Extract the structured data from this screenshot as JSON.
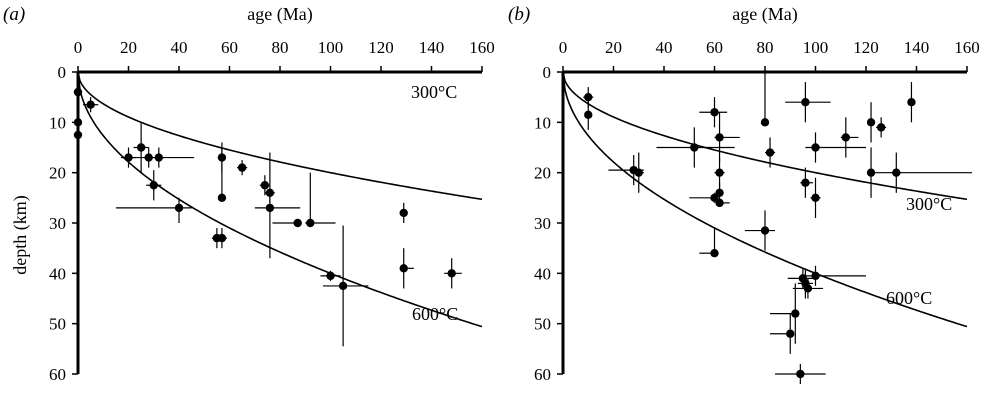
{
  "chart_data": [
    {
      "type": "scatter",
      "panel_label": "(a)",
      "xlabel": "age (Ma)",
      "ylabel": "depth (km)",
      "xlim": [
        0,
        160
      ],
      "ylim": [
        0,
        60
      ],
      "x_ticks": [
        0,
        20,
        40,
        60,
        80,
        100,
        120,
        140,
        160
      ],
      "y_ticks": [
        0,
        10,
        20,
        30,
        40,
        50,
        60
      ],
      "x_axis_position": "top",
      "y_inverted": true,
      "grid": false,
      "curves": [
        {
          "label": "300°C",
          "k": 2.0
        },
        {
          "label": "600°C",
          "k": 4.0
        }
      ],
      "points": [
        {
          "x": 0,
          "y": 4,
          "xerr": [
            0,
            0
          ],
          "yerr": [
            0,
            0
          ]
        },
        {
          "x": 0,
          "y": 10,
          "xerr": [
            0,
            0
          ],
          "yerr": [
            0,
            0
          ]
        },
        {
          "x": 0,
          "y": 12.5,
          "xerr": [
            0,
            0
          ],
          "yerr": [
            0,
            0
          ]
        },
        {
          "x": 5,
          "y": 6.5,
          "xerr": [
            3,
            3
          ],
          "yerr": [
            1.5,
            1.5
          ]
        },
        {
          "x": 20,
          "y": 17,
          "xerr": [
            3,
            3
          ],
          "yerr": [
            2,
            2
          ]
        },
        {
          "x": 25,
          "y": 15,
          "xerr": [
            3,
            3
          ],
          "yerr": [
            5,
            5
          ]
        },
        {
          "x": 28,
          "y": 17,
          "xerr": [
            7,
            18
          ],
          "yerr": [
            2,
            2
          ]
        },
        {
          "x": 30,
          "y": 22.5,
          "xerr": [
            3,
            3
          ],
          "yerr": [
            3,
            3
          ]
        },
        {
          "x": 32,
          "y": 17,
          "xerr": [
            2,
            2
          ],
          "yerr": [
            2,
            2
          ]
        },
        {
          "x": 40,
          "y": 27,
          "xerr": [
            25,
            5
          ],
          "yerr": [
            2,
            3
          ]
        },
        {
          "x": 55,
          "y": 33,
          "xerr": [
            2,
            2
          ],
          "yerr": [
            2,
            2
          ]
        },
        {
          "x": 57,
          "y": 17,
          "xerr": [
            0,
            0
          ],
          "yerr": [
            3,
            3
          ]
        },
        {
          "x": 57,
          "y": 25,
          "xerr": [
            0,
            0
          ],
          "yerr": [
            10,
            0
          ]
        },
        {
          "x": 57,
          "y": 33,
          "xerr": [
            2,
            2
          ],
          "yerr": [
            2,
            2
          ]
        },
        {
          "x": 65,
          "y": 19,
          "xerr": [
            2,
            2
          ],
          "yerr": [
            1.5,
            1.5
          ]
        },
        {
          "x": 74,
          "y": 22.5,
          "xerr": [
            2,
            2
          ],
          "yerr": [
            2,
            2
          ]
        },
        {
          "x": 76,
          "y": 24,
          "xerr": [
            2,
            2
          ],
          "yerr": [
            8,
            2
          ]
        },
        {
          "x": 76,
          "y": 27,
          "xerr": [
            6,
            12
          ],
          "yerr": [
            3,
            10
          ]
        },
        {
          "x": 87,
          "y": 30,
          "xerr": [
            10,
            0
          ],
          "yerr": [
            0,
            0
          ]
        },
        {
          "x": 92,
          "y": 30,
          "xerr": [
            2,
            10
          ],
          "yerr": [
            10,
            0
          ]
        },
        {
          "x": 100,
          "y": 40.5,
          "xerr": [
            4,
            4
          ],
          "yerr": [
            1,
            1
          ]
        },
        {
          "x": 105,
          "y": 42.5,
          "xerr": [
            8,
            10
          ],
          "yerr": [
            12,
            12
          ]
        },
        {
          "x": 129,
          "y": 28,
          "xerr": [
            1,
            1
          ],
          "yerr": [
            2,
            2
          ]
        },
        {
          "x": 129,
          "y": 39,
          "xerr": [
            0,
            4
          ],
          "yerr": [
            4,
            4
          ]
        },
        {
          "x": 148,
          "y": 40,
          "xerr": [
            3,
            4
          ],
          "yerr": [
            3,
            3
          ]
        }
      ]
    },
    {
      "type": "scatter",
      "panel_label": "(b)",
      "xlabel": "age (Ma)",
      "ylabel": "",
      "xlim": [
        0,
        160
      ],
      "ylim": [
        0,
        60
      ],
      "x_ticks": [
        0,
        20,
        40,
        60,
        80,
        100,
        120,
        140,
        160
      ],
      "y_ticks": [
        0,
        10,
        20,
        30,
        40,
        50,
        60
      ],
      "x_axis_position": "top",
      "y_inverted": true,
      "grid": false,
      "curves": [
        {
          "label": "300°C",
          "k": 2.0
        },
        {
          "label": "600°C",
          "k": 4.0
        }
      ],
      "points": [
        {
          "x": 10,
          "y": 5,
          "xerr": [
            2,
            2
          ],
          "yerr": [
            2,
            2
          ]
        },
        {
          "x": 10,
          "y": 8.5,
          "xerr": [
            0,
            0
          ],
          "yerr": [
            3,
            3
          ]
        },
        {
          "x": 28,
          "y": 19.5,
          "xerr": [
            10,
            4
          ],
          "yerr": [
            3,
            3
          ]
        },
        {
          "x": 30,
          "y": 20,
          "xerr": [
            2,
            2
          ],
          "yerr": [
            4,
            4
          ]
        },
        {
          "x": 52,
          "y": 15,
          "xerr": [
            15,
            16
          ],
          "yerr": [
            4,
            4
          ]
        },
        {
          "x": 60,
          "y": 8,
          "xerr": [
            6,
            5
          ],
          "yerr": [
            3,
            3
          ]
        },
        {
          "x": 60,
          "y": 25,
          "xerr": [
            10,
            0
          ],
          "yerr": [
            1,
            1
          ]
        },
        {
          "x": 62,
          "y": 13,
          "xerr": [
            2,
            8
          ],
          "yerr": [
            5,
            5
          ]
        },
        {
          "x": 62,
          "y": 20,
          "xerr": [
            2,
            2
          ],
          "yerr": [
            3,
            3
          ]
        },
        {
          "x": 62,
          "y": 24,
          "xerr": [
            0,
            0
          ],
          "yerr": [
            2,
            2
          ]
        },
        {
          "x": 62,
          "y": 26,
          "xerr": [
            0,
            4
          ],
          "yerr": [
            0,
            0
          ]
        },
        {
          "x": 60,
          "y": 36,
          "xerr": [
            6,
            0
          ],
          "yerr": [
            5,
            0
          ]
        },
        {
          "x": 80,
          "y": 10,
          "xerr": [
            0,
            0
          ],
          "yerr": [
            10,
            0
          ]
        },
        {
          "x": 82,
          "y": 16,
          "xerr": [
            2,
            2
          ],
          "yerr": [
            3,
            3
          ]
        },
        {
          "x": 80,
          "y": 31.5,
          "xerr": [
            8,
            4
          ],
          "yerr": [
            4,
            4
          ]
        },
        {
          "x": 96,
          "y": 6,
          "xerr": [
            8,
            10
          ],
          "yerr": [
            4,
            4
          ]
        },
        {
          "x": 96,
          "y": 22,
          "xerr": [
            2,
            3
          ],
          "yerr": [
            3,
            3
          ]
        },
        {
          "x": 100,
          "y": 15,
          "xerr": [
            4,
            20
          ],
          "yerr": [
            3,
            3
          ]
        },
        {
          "x": 100,
          "y": 25,
          "xerr": [
            2,
            2
          ],
          "yerr": [
            4,
            4
          ]
        },
        {
          "x": 100,
          "y": 40.5,
          "xerr": [
            4,
            20
          ],
          "yerr": [
            2,
            2
          ]
        },
        {
          "x": 112,
          "y": 13,
          "xerr": [
            2,
            5
          ],
          "yerr": [
            4,
            4
          ]
        },
        {
          "x": 122,
          "y": 10,
          "xerr": [
            0,
            0
          ],
          "yerr": [
            4,
            4
          ]
        },
        {
          "x": 122,
          "y": 20,
          "xerr": [
            0,
            40
          ],
          "yerr": [
            5,
            5
          ]
        },
        {
          "x": 126,
          "y": 11,
          "xerr": [
            2,
            2
          ],
          "yerr": [
            2,
            2
          ]
        },
        {
          "x": 132,
          "y": 20,
          "xerr": [
            2,
            2
          ],
          "yerr": [
            4,
            4
          ]
        },
        {
          "x": 138,
          "y": 6,
          "xerr": [
            0,
            0
          ],
          "yerr": [
            4,
            4
          ]
        },
        {
          "x": 95,
          "y": 41,
          "xerr": [
            6,
            6
          ],
          "yerr": [
            2,
            2
          ]
        },
        {
          "x": 96,
          "y": 42,
          "xerr": [
            3,
            3
          ],
          "yerr": [
            3,
            3
          ]
        },
        {
          "x": 97,
          "y": 43,
          "xerr": [
            6,
            6
          ],
          "yerr": [
            2,
            2
          ]
        },
        {
          "x": 92,
          "y": 48,
          "xerr": [
            10,
            0
          ],
          "yerr": [
            6,
            6
          ]
        },
        {
          "x": 90,
          "y": 52,
          "xerr": [
            8,
            0
          ],
          "yerr": [
            4,
            4
          ]
        },
        {
          "x": 94,
          "y": 60,
          "xerr": [
            10,
            10
          ],
          "yerr": [
            2,
            2
          ]
        }
      ]
    }
  ]
}
